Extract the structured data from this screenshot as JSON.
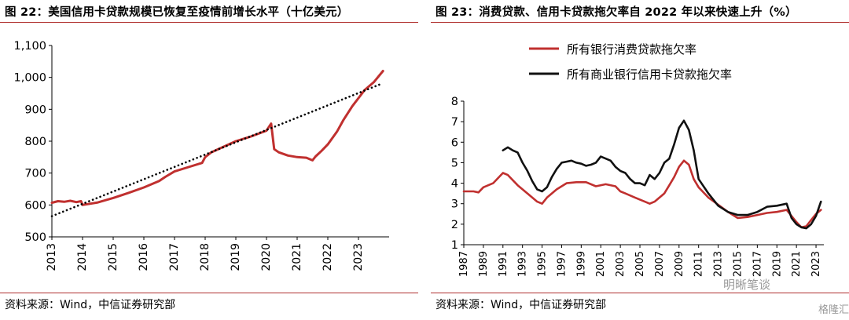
{
  "left": {
    "title": "图 22：美国信用卡贷款规模已恢复至疫情前增长水平（十亿美元）",
    "source": "资料来源：Wind，中信证券研究部"
  },
  "right": {
    "title": "图 23：消费贷款、信用卡贷款拖欠率自 2022 年以来快速上升（%）",
    "source": "资料来源：Wind，中信证券研究部"
  },
  "watermark": {
    "brand": "明晰笔谈",
    "site": "格隆汇"
  },
  "colors": {
    "accent": "#b0302e",
    "red_series": "#c0302f",
    "black_series": "#111111",
    "trend": "#000000"
  },
  "chart_data": [
    {
      "type": "line",
      "title": "美国信用卡贷款规模已恢复至疫情前增长水平（十亿美元）",
      "xlabel": "",
      "ylabel": "",
      "xlim": [
        2013,
        2024
      ],
      "ylim": [
        500,
        1100
      ],
      "yticks": [
        "500",
        "600",
        "700",
        "800",
        "900",
        "1,000",
        "1,100"
      ],
      "xticks": [
        "2013",
        "2014",
        "2015",
        "2016",
        "2017",
        "2018",
        "2019",
        "2020",
        "2021",
        "2022",
        "2023"
      ],
      "grid": false,
      "series": [
        {
          "style": "solid",
          "color": "#c0302f",
          "x": [
            2013.0,
            2013.2,
            2013.4,
            2013.6,
            2013.8,
            2013.95,
            2014.0,
            2014.5,
            2015.0,
            2015.5,
            2016.0,
            2016.5,
            2016.7,
            2017.0,
            2017.5,
            2017.9,
            2018.0,
            2018.2,
            2018.5,
            2019.0,
            2019.5,
            2020.0,
            2020.15,
            2020.25,
            2020.4,
            2020.7,
            2021.0,
            2021.3,
            2021.5,
            2021.6,
            2021.8,
            2022.0,
            2022.3,
            2022.5,
            2022.8,
            2023.0,
            2023.2,
            2023.5,
            2023.8
          ],
          "y": [
            607,
            612,
            610,
            613,
            609,
            612,
            600,
            608,
            622,
            638,
            655,
            675,
            688,
            705,
            720,
            732,
            750,
            765,
            778,
            800,
            815,
            833,
            855,
            775,
            765,
            755,
            750,
            748,
            740,
            752,
            770,
            790,
            830,
            865,
            910,
            935,
            960,
            985,
            1020
          ]
        },
        {
          "style": "dotted",
          "color": "#000000",
          "x": [
            2013.0,
            2023.75
          ],
          "y": [
            565,
            980
          ]
        }
      ]
    },
    {
      "type": "line",
      "title": "消费贷款、信用卡贷款拖欠率自 2022 年以来快速上升（%）",
      "xlabel": "",
      "ylabel": "",
      "xlim": [
        1987,
        2023.8
      ],
      "ylim": [
        1,
        8
      ],
      "yticks": [
        "1",
        "2",
        "3",
        "4",
        "5",
        "6",
        "7",
        "8"
      ],
      "xticks": [
        "1987",
        "1989",
        "1991",
        "1993",
        "1995",
        "1997",
        "1999",
        "2001",
        "2003",
        "2005",
        "2007",
        "2009",
        "2011",
        "2013",
        "2015",
        "2017",
        "2019",
        "2021",
        "2023"
      ],
      "legend_position": "top-left",
      "grid": false,
      "series": [
        {
          "name": "所有银行消费贷款拖欠率",
          "color": "#c0302f",
          "x": [
            1987.0,
            1988.0,
            1988.5,
            1989.0,
            1990.0,
            1991.0,
            1991.5,
            1992.5,
            1993.5,
            1994.5,
            1995.0,
            1995.5,
            1996.5,
            1997.5,
            1998.5,
            1999.5,
            2000.5,
            2001.5,
            2002.5,
            2003.0,
            2003.5,
            2004.5,
            2005.5,
            2006.0,
            2006.5,
            2007.0,
            2007.5,
            2008.0,
            2008.5,
            2009.0,
            2009.5,
            2010.0,
            2010.5,
            2011.0,
            2012.0,
            2013.0,
            2014.0,
            2015.0,
            2016.0,
            2017.0,
            2018.0,
            2019.0,
            2020.0,
            2020.5,
            2021.0,
            2021.5,
            2022.0,
            2022.5,
            2023.0,
            2023.5
          ],
          "y": [
            3.6,
            3.6,
            3.55,
            3.8,
            4.0,
            4.5,
            4.4,
            3.9,
            3.5,
            3.1,
            3.0,
            3.3,
            3.7,
            4.0,
            4.05,
            4.05,
            3.85,
            3.95,
            3.85,
            3.6,
            3.5,
            3.3,
            3.1,
            3.0,
            3.1,
            3.3,
            3.5,
            3.9,
            4.3,
            4.8,
            5.1,
            4.9,
            4.2,
            3.8,
            3.3,
            2.95,
            2.6,
            2.3,
            2.35,
            2.45,
            2.55,
            2.6,
            2.7,
            2.4,
            2.1,
            1.85,
            1.9,
            2.2,
            2.5,
            2.7
          ]
        },
        {
          "name": "所有商业银行信用卡贷款拖欠率",
          "color": "#111111",
          "x": [
            1991.0,
            1991.5,
            1992.0,
            1992.5,
            1993.0,
            1993.5,
            1994.0,
            1994.5,
            1995.0,
            1995.5,
            1996.0,
            1996.5,
            1997.0,
            1997.5,
            1998.0,
            1998.5,
            1999.0,
            1999.5,
            2000.0,
            2000.5,
            2001.0,
            2001.5,
            2002.0,
            2002.5,
            2003.0,
            2003.5,
            2004.0,
            2004.5,
            2005.0,
            2005.5,
            2006.0,
            2006.5,
            2007.0,
            2007.5,
            2008.0,
            2008.5,
            2009.0,
            2009.5,
            2010.0,
            2010.5,
            2011.0,
            2012.0,
            2013.0,
            2014.0,
            2015.0,
            2016.0,
            2017.0,
            2018.0,
            2019.0,
            2020.0,
            2020.5,
            2021.0,
            2021.5,
            2022.0,
            2022.5,
            2023.0,
            2023.5
          ],
          "y": [
            5.6,
            5.75,
            5.6,
            5.5,
            5.0,
            4.6,
            4.1,
            3.7,
            3.6,
            3.8,
            4.3,
            4.7,
            5.0,
            5.05,
            5.1,
            5.0,
            4.95,
            4.85,
            4.9,
            5.0,
            5.3,
            5.2,
            5.1,
            4.8,
            4.6,
            4.5,
            4.2,
            4.0,
            4.0,
            3.9,
            4.4,
            4.2,
            4.5,
            5.0,
            5.2,
            5.9,
            6.7,
            7.05,
            6.6,
            5.6,
            4.2,
            3.5,
            2.9,
            2.6,
            2.45,
            2.45,
            2.6,
            2.85,
            2.9,
            3.0,
            2.3,
            2.0,
            1.85,
            1.8,
            2.0,
            2.4,
            3.1
          ]
        }
      ]
    }
  ]
}
